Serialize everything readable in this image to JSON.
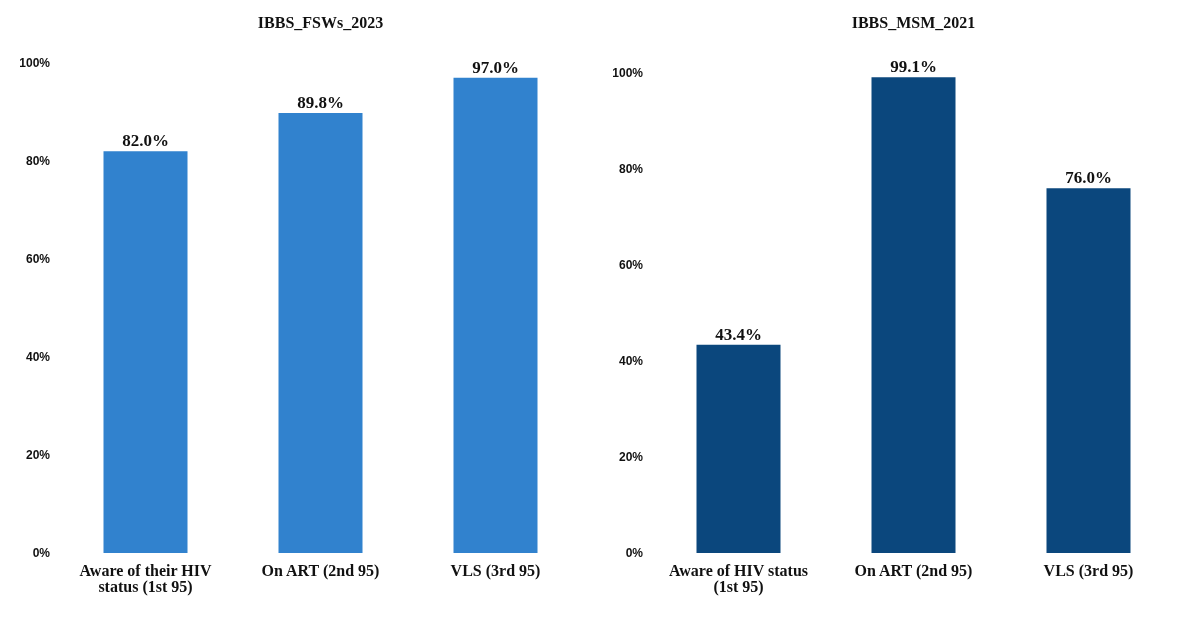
{
  "chart_data": [
    {
      "type": "bar",
      "title": "IBBS_FSWs_2023",
      "categories": [
        "Aware of their HIV status (1st 95)",
        "On ART (2nd 95)",
        "VLS (3rd 95)"
      ],
      "values": [
        82.0,
        89.8,
        97.0
      ],
      "value_labels": [
        "82.0%",
        "89.8%",
        "97.0%"
      ],
      "color": "#3182ce",
      "ylim": [
        0,
        100
      ],
      "yticks": [
        {
          "value": 0,
          "label": "0%"
        },
        {
          "value": 20,
          "label": "20%"
        },
        {
          "value": 40,
          "label": "40%"
        },
        {
          "value": 60,
          "label": "60%"
        },
        {
          "value": 80,
          "label": "80%"
        },
        {
          "value": 100,
          "label": "100%"
        }
      ],
      "grid": false,
      "legend": false
    },
    {
      "type": "bar",
      "title": "IBBS_MSM_2021",
      "categories": [
        "Aware of HIV status (1st 95)",
        "On ART (2nd 95)",
        "VLS (3rd 95)"
      ],
      "values": [
        43.4,
        99.1,
        76.0
      ],
      "value_labels": [
        "43.4%",
        "99.1%",
        "76.0%"
      ],
      "color": "#0b477d",
      "ylim": [
        0,
        100
      ],
      "yticks": [
        {
          "value": 0,
          "label": "0%"
        },
        {
          "value": 20,
          "label": "20%"
        },
        {
          "value": 40,
          "label": "40%"
        },
        {
          "value": 60,
          "label": "60%"
        },
        {
          "value": 80,
          "label": "80%"
        },
        {
          "value": 100,
          "label": "100%"
        }
      ],
      "grid": false,
      "legend": false
    }
  ]
}
